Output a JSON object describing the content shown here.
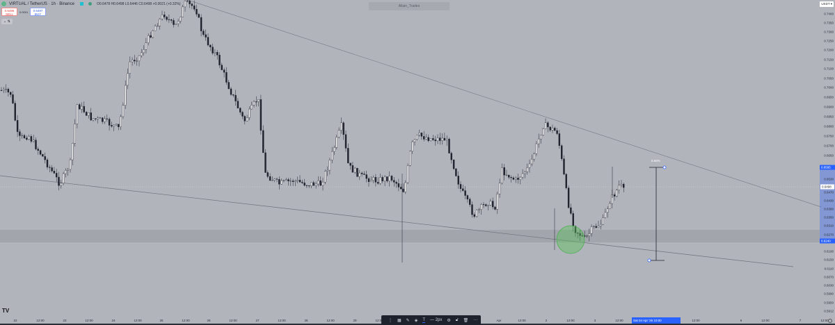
{
  "header": {
    "symbol": "VIRTUAL / TetherUS · 1h · Binance",
    "ohlc": "O0.6478 H0.6498 L0.6446 C0.6498 +0.0021 (+0.32%)"
  },
  "trade": {
    "sell_price": "0.6496",
    "sell_label": "SELL",
    "spread": "0.0001",
    "buy_price": "0.6497",
    "buy_label": "BUY"
  },
  "collapse_label": "⌄ ⇅",
  "watermark": "Allain_Trades",
  "currency": "USDT ▾",
  "price_axis": {
    "labels": [
      "0.7400",
      "0.7350",
      "0.7300",
      "0.7250",
      "0.7200",
      "0.7150",
      "0.7100",
      "0.7050",
      "0.7000",
      "0.6950",
      "0.6900",
      "0.6850",
      "0.6800",
      "0.6750",
      "0.6700",
      "0.6650",
      "0.6530",
      "0.6470",
      "0.6430",
      "0.6390",
      "0.6350",
      "0.6310",
      "0.6270",
      "0.6190",
      "0.6150",
      "0.6110",
      "0.6070",
      "0.6030",
      "0.5990",
      "0.5950",
      "0.5912"
    ],
    "measure_high": "0.6595",
    "measure_low": "0.6240",
    "current_price": "0.6498"
  },
  "time_axis": {
    "labels": [
      "22",
      "12:00",
      "23",
      "12:00",
      "24",
      "12:00",
      "25",
      "12:00",
      "26",
      "12:00",
      "27",
      "12:00",
      "28",
      "12:00",
      "29",
      "12:00",
      "Apr",
      "12:00",
      "2",
      "12:00",
      "3",
      "12:00",
      "5",
      "12:00",
      "6",
      "12:00",
      "7",
      "12:00"
    ],
    "crosshair": "Sat 04 Apr '26  10:00"
  },
  "measure": {
    "label": "5.68%"
  },
  "drawing_toolbar": {
    "width_label": "— 2px",
    "items": [
      "drag-handle",
      "templates-icon",
      "pencil-icon",
      "fill-icon",
      "text-icon",
      "line-width",
      "settings-icon",
      "lock-icon",
      "trash-icon",
      "more-icon"
    ]
  },
  "colors": {
    "background": "#b2b4bc",
    "accent": "#2962ff",
    "zone": "#a3a5ad",
    "circle": "#4caf50"
  }
}
